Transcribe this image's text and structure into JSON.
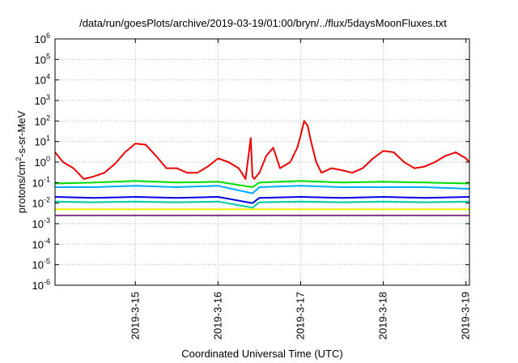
{
  "chart_data": {
    "type": "line",
    "title": "/data/run/goesPlots/archive/2019-03-19/01:00/bryn/../flux/5daysMoonFluxes.txt",
    "xlabel": "Coordinated Universal Time (UTC)",
    "ylabel_parts": {
      "pre": "protons/cm",
      "sup": "2",
      "post": "-s-sr-MeV"
    },
    "y_scale": "log",
    "ylim": [
      1e-06,
      1000000.0
    ],
    "y_ticks": [
      {
        "base": "10",
        "exp": "-6"
      },
      {
        "base": "10",
        "exp": "-5"
      },
      {
        "base": "10",
        "exp": "-4"
      },
      {
        "base": "10",
        "exp": "-3"
      },
      {
        "base": "10",
        "exp": "-2"
      },
      {
        "base": "10",
        "exp": "-1"
      },
      {
        "base": "10",
        "exp": "0"
      },
      {
        "base": "10",
        "exp": "1"
      },
      {
        "base": "10",
        "exp": "2"
      },
      {
        "base": "10",
        "exp": "3"
      },
      {
        "base": "10",
        "exp": "4"
      },
      {
        "base": "10",
        "exp": "5"
      },
      {
        "base": "10",
        "exp": "6"
      }
    ],
    "xlim": [
      "2019-03-14 00:40",
      "2019-03-19 01:00"
    ],
    "x_ticks": [
      "2019-3-15",
      "2019-3-16",
      "2019-3-17",
      "2019-3-18",
      "2019-3-19"
    ],
    "grid": true,
    "series": [
      {
        "color": "#ee0000",
        "x": [
          "2019-03-14 00:40",
          "2019-03-14 03:00",
          "2019-03-14 06:00",
          "2019-03-14 09:00",
          "2019-03-14 12:00",
          "2019-03-14 15:00",
          "2019-03-14 18:00",
          "2019-03-14 21:00",
          "2019-03-15 00:00",
          "2019-03-15 03:00",
          "2019-03-15 06:00",
          "2019-03-15 09:00",
          "2019-03-15 12:00",
          "2019-03-15 15:00",
          "2019-03-15 18:00",
          "2019-03-15 21:00",
          "2019-03-16 00:00",
          "2019-03-16 03:00",
          "2019-03-16 06:00",
          "2019-03-16 08:00",
          "2019-03-16 09:30",
          "2019-03-16 10:00",
          "2019-03-16 10:30",
          "2019-03-16 12:00",
          "2019-03-16 14:00",
          "2019-03-16 16:00",
          "2019-03-16 18:00",
          "2019-03-16 21:00",
          "2019-03-16 23:00",
          "2019-03-17 00:00",
          "2019-03-17 01:00",
          "2019-03-17 02:00",
          "2019-03-17 03:00",
          "2019-03-17 04:30",
          "2019-03-17 06:00",
          "2019-03-17 09:00",
          "2019-03-17 12:00",
          "2019-03-17 15:00",
          "2019-03-17 18:00",
          "2019-03-17 21:00",
          "2019-03-18 00:00",
          "2019-03-18 03:00",
          "2019-03-18 06:00",
          "2019-03-18 09:00",
          "2019-03-18 12:00",
          "2019-03-18 15:00",
          "2019-03-18 18:00",
          "2019-03-18 21:00",
          "2019-03-19 00:00",
          "2019-03-19 01:00"
        ],
        "y": [
          3.0,
          1.0,
          0.5,
          0.15,
          0.2,
          0.3,
          0.8,
          3.0,
          8.0,
          7.0,
          2.0,
          0.5,
          0.5,
          0.3,
          0.3,
          0.6,
          1.5,
          1.0,
          0.5,
          0.15,
          15.0,
          0.2,
          0.15,
          0.3,
          2.0,
          5.0,
          0.5,
          1.0,
          5.0,
          20.0,
          100.0,
          60.0,
          10.0,
          1.0,
          0.3,
          0.5,
          0.4,
          0.3,
          0.5,
          1.5,
          3.5,
          3.0,
          1.0,
          0.5,
          0.6,
          1.0,
          2.0,
          3.0,
          1.5,
          1.0
        ]
      },
      {
        "color": "#00dd00",
        "x": [
          "2019-03-14 00:40",
          "2019-03-14 12:00",
          "2019-03-15 00:00",
          "2019-03-15 12:00",
          "2019-03-16 00:00",
          "2019-03-16 10:00",
          "2019-03-16 12:00",
          "2019-03-17 00:00",
          "2019-03-17 12:00",
          "2019-03-18 00:00",
          "2019-03-18 12:00",
          "2019-03-19 01:00"
        ],
        "y": [
          0.09,
          0.1,
          0.12,
          0.1,
          0.11,
          0.06,
          0.1,
          0.12,
          0.1,
          0.11,
          0.1,
          0.09
        ]
      },
      {
        "color": "#00aaff",
        "x": [
          "2019-03-14 00:40",
          "2019-03-14 12:00",
          "2019-03-15 00:00",
          "2019-03-15 12:00",
          "2019-03-16 00:00",
          "2019-03-16 10:00",
          "2019-03-16 12:00",
          "2019-03-17 00:00",
          "2019-03-17 12:00",
          "2019-03-18 00:00",
          "2019-03-18 12:00",
          "2019-03-19 01:00"
        ],
        "y": [
          0.06,
          0.06,
          0.07,
          0.06,
          0.07,
          0.03,
          0.06,
          0.07,
          0.06,
          0.06,
          0.06,
          0.05
        ]
      },
      {
        "color": "#0000ee",
        "x": [
          "2019-03-14 00:40",
          "2019-03-14 12:00",
          "2019-03-15 00:00",
          "2019-03-15 12:00",
          "2019-03-16 00:00",
          "2019-03-16 10:00",
          "2019-03-16 12:00",
          "2019-03-17 00:00",
          "2019-03-17 12:00",
          "2019-03-18 00:00",
          "2019-03-18 12:00",
          "2019-03-19 01:00"
        ],
        "y": [
          0.02,
          0.018,
          0.02,
          0.018,
          0.02,
          0.01,
          0.018,
          0.02,
          0.018,
          0.02,
          0.018,
          0.02
        ]
      },
      {
        "color": "#00ccaa",
        "x": [
          "2019-03-14 00:40",
          "2019-03-14 12:00",
          "2019-03-15 00:00",
          "2019-03-15 12:00",
          "2019-03-16 00:00",
          "2019-03-16 10:00",
          "2019-03-16 12:00",
          "2019-03-17 00:00",
          "2019-03-17 12:00",
          "2019-03-18 00:00",
          "2019-03-18 12:00",
          "2019-03-19 01:00"
        ],
        "y": [
          0.012,
          0.011,
          0.012,
          0.011,
          0.012,
          0.006,
          0.011,
          0.012,
          0.011,
          0.012,
          0.011,
          0.012
        ]
      },
      {
        "color": "#eeee00",
        "x": [
          "2019-03-14 00:40",
          "2019-03-15 00:00",
          "2019-03-16 00:00",
          "2019-03-17 00:00",
          "2019-03-18 00:00",
          "2019-03-19 01:00"
        ],
        "y": [
          0.005,
          0.005,
          0.005,
          0.005,
          0.005,
          0.005
        ]
      },
      {
        "color": "#883388",
        "x": [
          "2019-03-14 00:40",
          "2019-03-15 00:00",
          "2019-03-16 00:00",
          "2019-03-17 00:00",
          "2019-03-18 00:00",
          "2019-03-19 01:00"
        ],
        "y": [
          0.0025,
          0.0025,
          0.0025,
          0.0025,
          0.0025,
          0.0025
        ]
      }
    ]
  }
}
